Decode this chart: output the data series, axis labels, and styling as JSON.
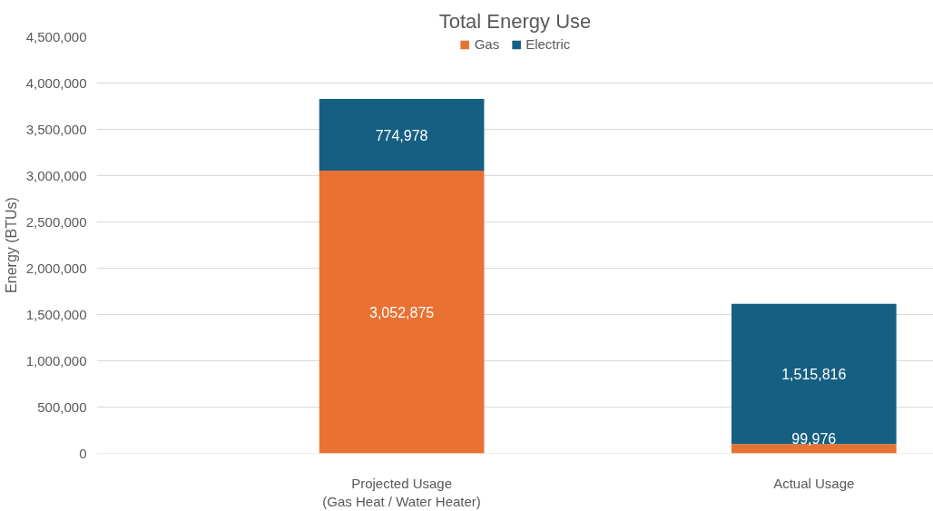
{
  "chart_data": {
    "type": "bar",
    "title": "Total Energy Use",
    "ylabel": "Energy (BTUs)",
    "categories": [
      "Projected Usage\n(Gas Heat / Water Heater)",
      "Actual Usage"
    ],
    "series": [
      {
        "name": "Gas",
        "color": "#e97132",
        "values": [
          3052875,
          99976
        ],
        "value_labels": [
          "3,052,875",
          "99,976"
        ]
      },
      {
        "name": "Electric",
        "color": "#156082",
        "values": [
          774978,
          1515816
        ],
        "value_labels": [
          "774,978",
          "1,515,816"
        ]
      }
    ],
    "stacked": true,
    "ylim": [
      0,
      4500000
    ],
    "yticks": [
      {
        "value": 0,
        "label": "0"
      },
      {
        "value": 500000,
        "label": "500,000"
      },
      {
        "value": 1000000,
        "label": "1,000,000"
      },
      {
        "value": 1500000,
        "label": "1,500,000"
      },
      {
        "value": 2000000,
        "label": "2,000,000"
      },
      {
        "value": 2500000,
        "label": "2,500,000"
      },
      {
        "value": 3000000,
        "label": "3,000,000"
      },
      {
        "value": 3500000,
        "label": "3,500,000"
      },
      {
        "value": 4000000,
        "label": "4,000,000"
      },
      {
        "value": 4500000,
        "label": "4,500,000"
      }
    ],
    "grid": "y",
    "legend": "top"
  }
}
